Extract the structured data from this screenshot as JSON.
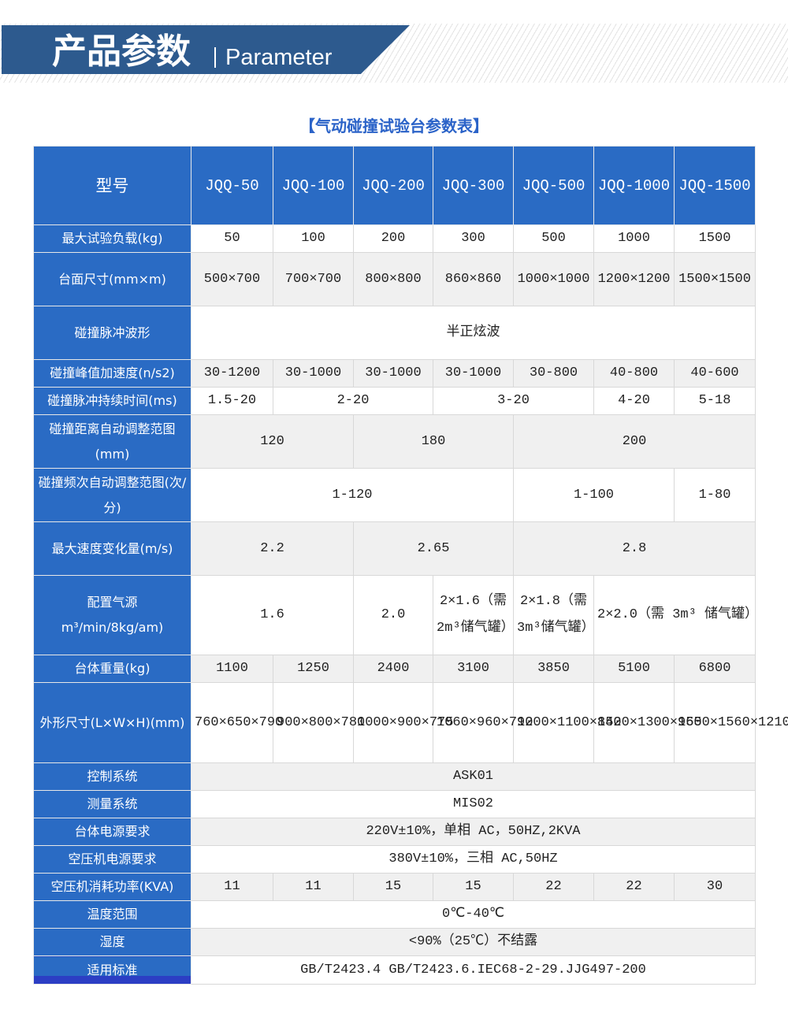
{
  "banner": {
    "title": "产品参数",
    "subtitle": "Parameter",
    "color": "#2d5a8e"
  },
  "table_title": "【气动碰撞试验台参数表】",
  "colors": {
    "label_bg": "#2a6bc4",
    "alt_row": "#f0f0f0",
    "title": "#2b63c8"
  },
  "header": [
    "型号",
    "JQQ-50",
    "JQQ-100",
    "JQQ-200",
    "JQQ-300",
    "JQQ-500",
    "JQQ-1000",
    "JQQ-1500"
  ],
  "rows": [
    {
      "label": "最大试验负载(kg)",
      "cells": [
        [
          "50",
          1
        ],
        [
          "100",
          1
        ],
        [
          "200",
          1
        ],
        [
          "300",
          1
        ],
        [
          "500",
          1
        ],
        [
          "1000",
          1
        ],
        [
          "1500",
          1
        ]
      ]
    },
    {
      "label": "台面尺寸(mm×m)",
      "cells": [
        [
          "500×700",
          1
        ],
        [
          "700×700",
          1
        ],
        [
          "800×800",
          1
        ],
        [
          "860×860",
          1
        ],
        [
          "1000×1000",
          1
        ],
        [
          "1200×1200",
          1
        ],
        [
          "1500×1500",
          1
        ]
      ]
    },
    {
      "label": "碰撞脉冲波形",
      "cells": [
        [
          "半正炫波",
          7
        ]
      ]
    },
    {
      "label": "碰撞峰值加速度(n/s2)",
      "cells": [
        [
          "30-1200",
          1
        ],
        [
          "30-1000",
          1
        ],
        [
          "30-1000",
          1
        ],
        [
          "30-1000",
          1
        ],
        [
          "30-800",
          1
        ],
        [
          "40-800",
          1
        ],
        [
          "40-600",
          1
        ]
      ]
    },
    {
      "label": "碰撞脉冲持续时间(ms)",
      "cells": [
        [
          "1.5-20",
          1
        ],
        [
          "2-20",
          2
        ],
        [
          "3-20",
          2
        ],
        [
          "4-20",
          1
        ],
        [
          "5-18",
          1
        ]
      ]
    },
    {
      "label": "碰撞距离自动调整范图(mm)",
      "cells": [
        [
          "120",
          2
        ],
        [
          "180",
          2
        ],
        [
          "200",
          3
        ]
      ]
    },
    {
      "label": "碰撞频次自动调整范图(次/分)",
      "cells": [
        [
          "1-120",
          4
        ],
        [
          "1-100",
          2
        ],
        [
          "1-80",
          1
        ]
      ]
    },
    {
      "label": "最大速度变化量(m/s)",
      "cells": [
        [
          "2.2",
          2
        ],
        [
          "2.65",
          2
        ],
        [
          "2.8",
          3
        ]
      ]
    },
    {
      "label": "配置气源 m³/min/8kg/am)",
      "cells": [
        [
          "1.6",
          2
        ],
        [
          "2.0",
          1
        ],
        [
          "2×1.6（需 2m³储气罐）",
          1
        ],
        [
          "2×1.8（需 3m³储气罐）",
          1
        ],
        [
          "2×2.0（需 3m³ 储气罐）",
          2
        ]
      ]
    },
    {
      "label": "台体重量(kg)",
      "cells": [
        [
          "1100",
          1
        ],
        [
          "1250",
          1
        ],
        [
          "2400",
          1
        ],
        [
          "3100",
          1
        ],
        [
          "3850",
          1
        ],
        [
          "5100",
          1
        ],
        [
          "6800",
          1
        ]
      ]
    },
    {
      "label": "外形尺寸(L×W×H)(mm)",
      "cells": [
        [
          "760×650×790",
          1
        ],
        [
          "900×800×780",
          1
        ],
        [
          "1000×900×775",
          1
        ],
        [
          "1060×960×790",
          1
        ],
        [
          "1200×1100×850",
          1
        ],
        [
          "1420×1300×950",
          1
        ],
        [
          "1650×1560×1210",
          1
        ]
      ]
    },
    {
      "label": "控制系统",
      "cells": [
        [
          "ASK01",
          7
        ]
      ]
    },
    {
      "label": "测量系统",
      "cells": [
        [
          "MIS02",
          7
        ]
      ]
    },
    {
      "label": "台体电源要求",
      "cells": [
        [
          "220V±10%，单相 AC，50HZ,2KVA",
          7
        ]
      ]
    },
    {
      "label": "空压机电源要求",
      "cells": [
        [
          "380V±10%，三相 AC,50HZ",
          7
        ]
      ]
    },
    {
      "label": "空压机消耗功率(KVA)",
      "cells": [
        [
          "11",
          1
        ],
        [
          "11",
          1
        ],
        [
          "15",
          1
        ],
        [
          "15",
          1
        ],
        [
          "22",
          1
        ],
        [
          "22",
          1
        ],
        [
          "30",
          1
        ]
      ]
    },
    {
      "label": "温度范围",
      "cells": [
        [
          "0℃-40℃",
          7
        ]
      ]
    },
    {
      "label": "湿度",
      "cells": [
        [
          "<90%（25℃）不结露",
          7
        ]
      ]
    },
    {
      "label": "适用标准",
      "cells": [
        [
          "GB/T2423.4 GB/T2423.6.IEC68-2-29.JJG497-200",
          7
        ]
      ]
    }
  ]
}
